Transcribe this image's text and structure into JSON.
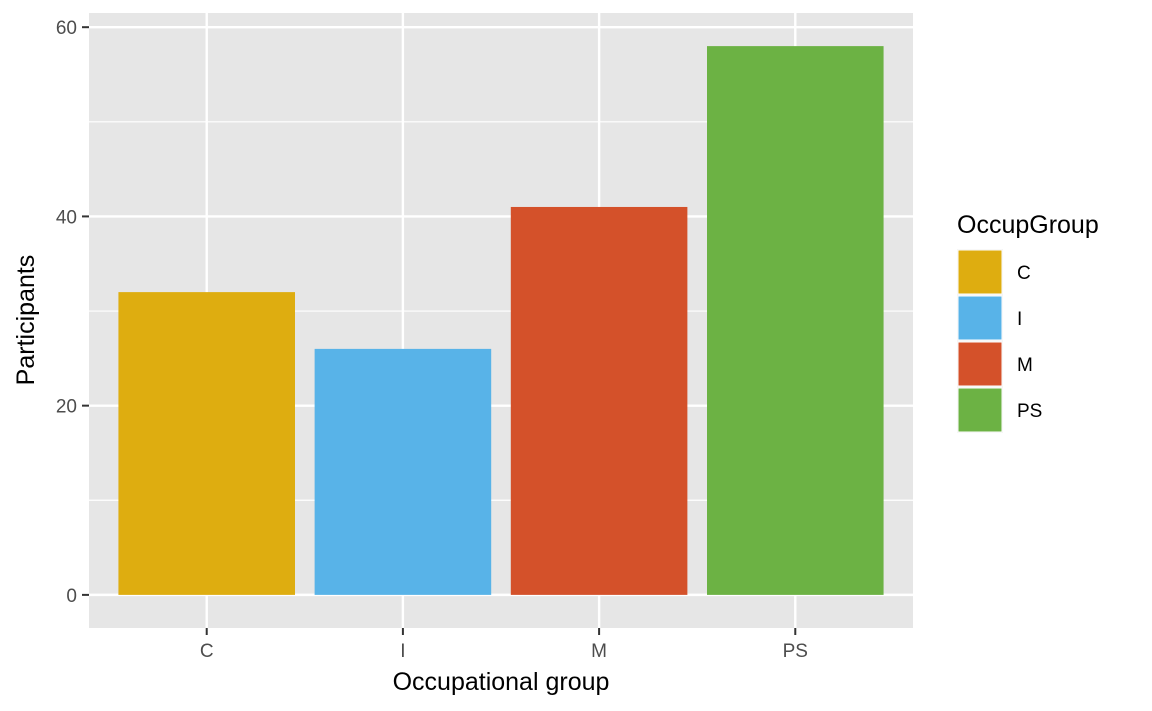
{
  "chart_data": {
    "type": "bar",
    "categories": [
      "C",
      "I",
      "M",
      "PS"
    ],
    "values": [
      32,
      26,
      41,
      58
    ],
    "title": "",
    "xlabel": "Occupational group",
    "ylabel": "Participants",
    "ylim": [
      -3.5,
      61.5
    ],
    "yticks": [
      0,
      20,
      40,
      60
    ],
    "grid": true,
    "legend": {
      "title": "OccupGroup",
      "position": "right",
      "entries": [
        "C",
        "I",
        "M",
        "PS"
      ]
    },
    "colors": [
      "#DEAD10",
      "#58B3E8",
      "#D4512A",
      "#6CB244"
    ],
    "panel_background": "#E6E6E6",
    "grid_color": "#FFFFFF"
  }
}
